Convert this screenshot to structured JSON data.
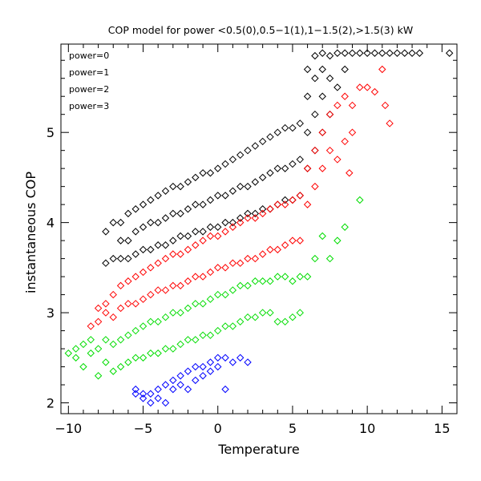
{
  "chart_data": {
    "type": "scatter",
    "title": "COP model for power <0.5(0),0.5−1(1),1−1.5(2),>1.5(3) kW",
    "xlabel": "Temperature",
    "ylabel": "instantaneous COP",
    "xlim": [
      -10.5,
      16
    ],
    "ylim": [
      1.88,
      5.98
    ],
    "xticks": [
      -10,
      -5,
      0,
      5,
      10,
      15
    ],
    "xtick_labels": [
      "−10",
      "−5",
      "0",
      "5",
      "10",
      "15"
    ],
    "yticks": [
      2,
      3,
      4,
      5
    ],
    "ytick_labels": [
      "2",
      "3",
      "4",
      "5"
    ],
    "marker": "diamond",
    "grid": false,
    "legend_position": "top-left",
    "series": [
      {
        "name": "power=0",
        "color": "#000000",
        "points": [
          [
            -7.5,
            3.55
          ],
          [
            -7.5,
            3.9
          ],
          [
            -7,
            3.6
          ],
          [
            -7,
            4.0
          ],
          [
            -6.5,
            3.6
          ],
          [
            -6.5,
            3.8
          ],
          [
            -6.5,
            4.0
          ],
          [
            -6,
            3.6
          ],
          [
            -6,
            3.8
          ],
          [
            -6,
            4.1
          ],
          [
            -5.5,
            3.65
          ],
          [
            -5.5,
            3.9
          ],
          [
            -5.5,
            4.15
          ],
          [
            -5,
            3.7
          ],
          [
            -5,
            3.95
          ],
          [
            -5,
            4.2
          ],
          [
            -4.5,
            3.7
          ],
          [
            -4.5,
            4.0
          ],
          [
            -4.5,
            4.25
          ],
          [
            -4,
            3.75
          ],
          [
            -4,
            4.0
          ],
          [
            -4,
            4.3
          ],
          [
            -3.5,
            3.75
          ],
          [
            -3.5,
            4.05
          ],
          [
            -3.5,
            4.35
          ],
          [
            -3,
            3.8
          ],
          [
            -3,
            4.1
          ],
          [
            -3,
            4.4
          ],
          [
            -2.5,
            3.85
          ],
          [
            -2.5,
            4.1
          ],
          [
            -2.5,
            4.4
          ],
          [
            -2,
            3.85
          ],
          [
            -2,
            4.15
          ],
          [
            -2,
            4.45
          ],
          [
            -1.5,
            3.9
          ],
          [
            -1.5,
            4.2
          ],
          [
            -1.5,
            4.5
          ],
          [
            -1,
            3.9
          ],
          [
            -1,
            4.2
          ],
          [
            -1,
            4.55
          ],
          [
            -0.5,
            3.95
          ],
          [
            -0.5,
            4.25
          ],
          [
            -0.5,
            4.55
          ],
          [
            0,
            3.95
          ],
          [
            0,
            4.3
          ],
          [
            0,
            4.6
          ],
          [
            0.5,
            4.0
          ],
          [
            0.5,
            4.3
          ],
          [
            0.5,
            4.65
          ],
          [
            1,
            4.0
          ],
          [
            1,
            4.35
          ],
          [
            1,
            4.7
          ],
          [
            1.5,
            4.05
          ],
          [
            1.5,
            4.4
          ],
          [
            1.5,
            4.75
          ],
          [
            2,
            4.1
          ],
          [
            2,
            4.4
          ],
          [
            2,
            4.8
          ],
          [
            2.5,
            4.1
          ],
          [
            2.5,
            4.45
          ],
          [
            2.5,
            4.85
          ],
          [
            3,
            4.15
          ],
          [
            3,
            4.5
          ],
          [
            3,
            4.9
          ],
          [
            3.5,
            4.15
          ],
          [
            3.5,
            4.55
          ],
          [
            3.5,
            4.95
          ],
          [
            4,
            4.2
          ],
          [
            4,
            4.6
          ],
          [
            4,
            5.0
          ],
          [
            4.5,
            4.25
          ],
          [
            4.5,
            4.6
          ],
          [
            4.5,
            5.05
          ],
          [
            5,
            4.25
          ],
          [
            5,
            4.65
          ],
          [
            5,
            5.05
          ],
          [
            5.5,
            4.3
          ],
          [
            5.5,
            4.7
          ],
          [
            5.5,
            5.1
          ],
          [
            6,
            4.6
          ],
          [
            6,
            5.0
          ],
          [
            6,
            5.4
          ],
          [
            6,
            5.7
          ],
          [
            6.5,
            4.8
          ],
          [
            6.5,
            5.2
          ],
          [
            6.5,
            5.6
          ],
          [
            6.5,
            5.85
          ],
          [
            7,
            5.0
          ],
          [
            7,
            5.4
          ],
          [
            7,
            5.7
          ],
          [
            7,
            5.88
          ],
          [
            7.5,
            5.2
          ],
          [
            7.5,
            5.6
          ],
          [
            7.5,
            5.85
          ],
          [
            8,
            5.5
          ],
          [
            8,
            5.88
          ],
          [
            8.5,
            5.7
          ],
          [
            8.5,
            5.88
          ],
          [
            9,
            5.88
          ],
          [
            9.5,
            5.88
          ],
          [
            10,
            5.88
          ],
          [
            10.5,
            5.88
          ],
          [
            11,
            5.88
          ],
          [
            11.5,
            5.88
          ],
          [
            12,
            5.88
          ],
          [
            12.5,
            5.88
          ],
          [
            13,
            5.88
          ],
          [
            13.5,
            5.88
          ],
          [
            15.5,
            5.88
          ]
        ]
      },
      {
        "name": "power=1",
        "color": "#ff0000",
        "points": [
          [
            -8.5,
            2.85
          ],
          [
            -8,
            2.9
          ],
          [
            -8,
            3.05
          ],
          [
            -7.5,
            3.0
          ],
          [
            -7.5,
            3.1
          ],
          [
            -7,
            2.95
          ],
          [
            -7,
            3.2
          ],
          [
            -6.5,
            3.05
          ],
          [
            -6.5,
            3.3
          ],
          [
            -6,
            3.1
          ],
          [
            -6,
            3.35
          ],
          [
            -5.5,
            3.1
          ],
          [
            -5.5,
            3.4
          ],
          [
            -5,
            3.15
          ],
          [
            -5,
            3.45
          ],
          [
            -4.5,
            3.2
          ],
          [
            -4.5,
            3.5
          ],
          [
            -4,
            3.25
          ],
          [
            -4,
            3.55
          ],
          [
            -3.5,
            3.25
          ],
          [
            -3.5,
            3.6
          ],
          [
            -3,
            3.3
          ],
          [
            -3,
            3.65
          ],
          [
            -2.5,
            3.3
          ],
          [
            -2.5,
            3.65
          ],
          [
            -2,
            3.35
          ],
          [
            -2,
            3.7
          ],
          [
            -1.5,
            3.4
          ],
          [
            -1.5,
            3.75
          ],
          [
            -1,
            3.4
          ],
          [
            -1,
            3.8
          ],
          [
            -0.5,
            3.45
          ],
          [
            -0.5,
            3.85
          ],
          [
            0,
            3.5
          ],
          [
            0,
            3.85
          ],
          [
            0.5,
            3.5
          ],
          [
            0.5,
            3.9
          ],
          [
            1,
            3.55
          ],
          [
            1,
            3.95
          ],
          [
            1.5,
            3.55
          ],
          [
            1.5,
            4.0
          ],
          [
            2,
            3.6
          ],
          [
            2,
            4.05
          ],
          [
            2.5,
            3.6
          ],
          [
            2.5,
            4.05
          ],
          [
            3,
            3.65
          ],
          [
            3,
            4.1
          ],
          [
            3.5,
            3.7
          ],
          [
            3.5,
            4.15
          ],
          [
            4,
            3.7
          ],
          [
            4,
            4.2
          ],
          [
            4.5,
            3.75
          ],
          [
            4.5,
            4.2
          ],
          [
            5,
            3.8
          ],
          [
            5,
            4.25
          ],
          [
            5.5,
            3.8
          ],
          [
            5.5,
            4.3
          ],
          [
            6,
            4.2
          ],
          [
            6,
            4.6
          ],
          [
            6.5,
            4.4
          ],
          [
            6.5,
            4.8
          ],
          [
            7,
            4.6
          ],
          [
            7,
            5.0
          ],
          [
            7.5,
            4.8
          ],
          [
            7.5,
            5.2
          ],
          [
            8,
            4.7
          ],
          [
            8,
            5.3
          ],
          [
            8.5,
            4.9
          ],
          [
            8.5,
            5.4
          ],
          [
            9,
            5.0
          ],
          [
            9,
            5.3
          ],
          [
            8.8,
            4.55
          ],
          [
            9.5,
            5.5
          ],
          [
            10,
            5.5
          ],
          [
            10.5,
            5.45
          ],
          [
            11,
            5.7
          ],
          [
            11.5,
            5.1
          ],
          [
            11.2,
            5.3
          ]
        ]
      },
      {
        "name": "power=2",
        "color": "#00dd00",
        "points": [
          [
            -10,
            2.55
          ],
          [
            -9.5,
            2.6
          ],
          [
            -9.5,
            2.5
          ],
          [
            -9,
            2.4
          ],
          [
            -9,
            2.65
          ],
          [
            -8.5,
            2.55
          ],
          [
            -8.5,
            2.7
          ],
          [
            -8,
            2.3
          ],
          [
            -8,
            2.6
          ],
          [
            -7.5,
            2.45
          ],
          [
            -7.5,
            2.7
          ],
          [
            -7,
            2.35
          ],
          [
            -7,
            2.65
          ],
          [
            -6.5,
            2.4
          ],
          [
            -6.5,
            2.7
          ],
          [
            -6,
            2.45
          ],
          [
            -6,
            2.75
          ],
          [
            -5.5,
            2.5
          ],
          [
            -5.5,
            2.8
          ],
          [
            -5,
            2.5
          ],
          [
            -5,
            2.85
          ],
          [
            -4.5,
            2.55
          ],
          [
            -4.5,
            2.9
          ],
          [
            -4,
            2.55
          ],
          [
            -4,
            2.9
          ],
          [
            -3.5,
            2.6
          ],
          [
            -3.5,
            2.95
          ],
          [
            -3,
            2.6
          ],
          [
            -3,
            3.0
          ],
          [
            -2.5,
            2.65
          ],
          [
            -2.5,
            3.0
          ],
          [
            -2,
            2.7
          ],
          [
            -2,
            3.05
          ],
          [
            -1.5,
            2.7
          ],
          [
            -1.5,
            3.1
          ],
          [
            -1,
            2.75
          ],
          [
            -1,
            3.1
          ],
          [
            -0.5,
            2.75
          ],
          [
            -0.5,
            3.15
          ],
          [
            0,
            2.8
          ],
          [
            0,
            3.2
          ],
          [
            0.5,
            2.85
          ],
          [
            0.5,
            3.2
          ],
          [
            1,
            2.85
          ],
          [
            1,
            3.25
          ],
          [
            1.5,
            2.9
          ],
          [
            1.5,
            3.3
          ],
          [
            2,
            2.95
          ],
          [
            2,
            3.3
          ],
          [
            2.5,
            2.95
          ],
          [
            2.5,
            3.35
          ],
          [
            3,
            3.0
          ],
          [
            3,
            3.35
          ],
          [
            3.5,
            3.0
          ],
          [
            3.5,
            3.35
          ],
          [
            4,
            2.9
          ],
          [
            4,
            3.4
          ],
          [
            4.5,
            2.9
          ],
          [
            4.5,
            3.4
          ],
          [
            5,
            2.95
          ],
          [
            5,
            3.35
          ],
          [
            5.5,
            3.0
          ],
          [
            5.5,
            3.4
          ],
          [
            6,
            3.4
          ],
          [
            6.5,
            3.6
          ],
          [
            7,
            3.85
          ],
          [
            7.5,
            3.6
          ],
          [
            8,
            3.8
          ],
          [
            8.5,
            3.95
          ],
          [
            9.5,
            4.25
          ]
        ]
      },
      {
        "name": "power=3",
        "color": "#0000ff",
        "points": [
          [
            -5.5,
            2.1
          ],
          [
            -5.5,
            2.15
          ],
          [
            -5,
            2.05
          ],
          [
            -5,
            2.1
          ],
          [
            -4.5,
            2.0
          ],
          [
            -4.5,
            2.1
          ],
          [
            -4,
            2.05
          ],
          [
            -4,
            2.15
          ],
          [
            -3.5,
            2.2
          ],
          [
            -3.5,
            2.0
          ],
          [
            -3,
            2.25
          ],
          [
            -3,
            2.15
          ],
          [
            -2.5,
            2.3
          ],
          [
            -2.5,
            2.2
          ],
          [
            -2,
            2.35
          ],
          [
            -2,
            2.15
          ],
          [
            -1.5,
            2.4
          ],
          [
            -1.5,
            2.25
          ],
          [
            -1,
            2.4
          ],
          [
            -1,
            2.3
          ],
          [
            -0.5,
            2.45
          ],
          [
            -0.5,
            2.35
          ],
          [
            0,
            2.5
          ],
          [
            0,
            2.4
          ],
          [
            0.5,
            2.5
          ],
          [
            0.5,
            2.15
          ],
          [
            1,
            2.45
          ],
          [
            1.5,
            2.5
          ],
          [
            2,
            2.45
          ]
        ]
      }
    ]
  }
}
